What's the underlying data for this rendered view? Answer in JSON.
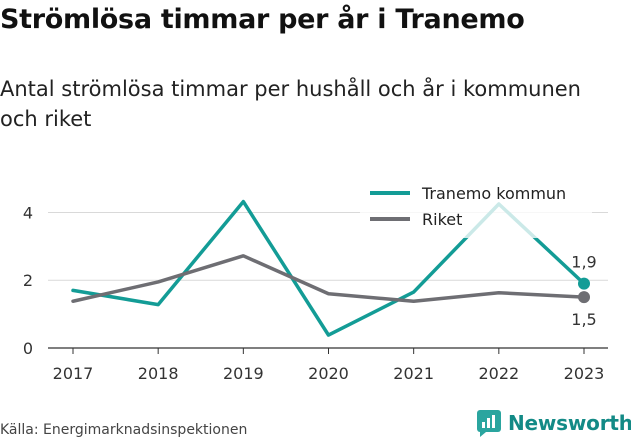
{
  "header": {
    "title": "Strömlösa timmar per år i Tranemo",
    "subtitle": "Antal strömlösa timmar per hushåll och år i kommunen och riket"
  },
  "chart_data": {
    "type": "line",
    "x": [
      "2017",
      "2018",
      "2019",
      "2020",
      "2021",
      "2022",
      "2023"
    ],
    "series": [
      {
        "name": "Tranemo kommun",
        "color": "#139c96",
        "values": [
          1.7,
          1.28,
          4.32,
          0.38,
          1.65,
          4.25,
          1.9
        ]
      },
      {
        "name": "Riket",
        "color": "#6e6e73",
        "values": [
          1.38,
          1.95,
          2.72,
          1.6,
          1.38,
          1.63,
          1.5
        ]
      }
    ],
    "end_labels": [
      "1,9",
      "1,5"
    ],
    "yticks": [
      "0",
      "2",
      "4"
    ],
    "ytick_values": [
      0,
      2,
      4
    ],
    "ylim": [
      0,
      5.4
    ],
    "grid": true,
    "legend": "top-right"
  },
  "footer": {
    "source": "Källa: Energimarknadsinspektionen",
    "brand": "Newsworthy"
  },
  "colors": {
    "brand": "#138a86",
    "grid": "#d9d9d9"
  }
}
